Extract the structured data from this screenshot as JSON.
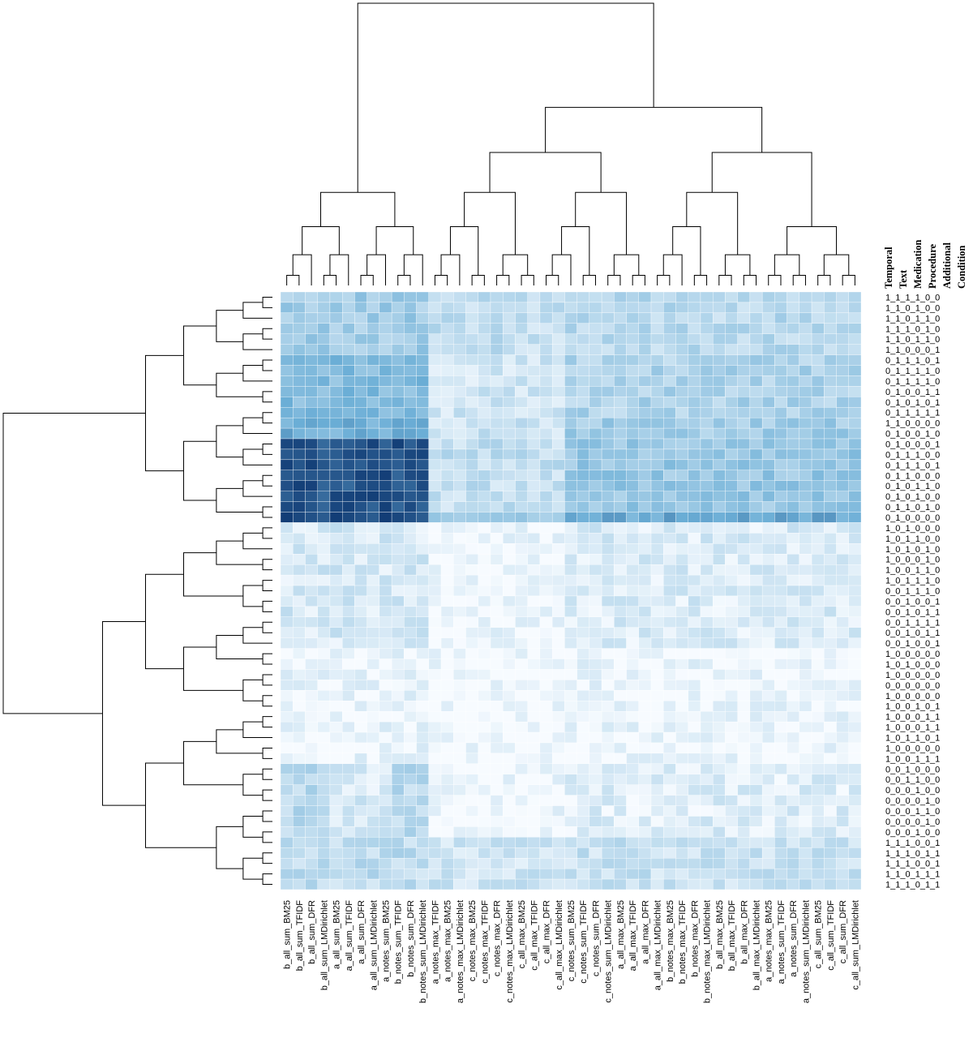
{
  "chart_data": {
    "type": "heatmap",
    "title": "",
    "xlabel": "",
    "ylabel": "",
    "color_scale": {
      "min_color": "#f7fbff",
      "max_color": "#08306b",
      "range": [
        0,
        1
      ]
    },
    "row_header": [
      "Temporal",
      "Text",
      "Medication",
      "Procedure",
      "Additional",
      "Condition"
    ],
    "columns": [
      "b_all_sum_BM25",
      "b_all_sum_TFIDF",
      "b_all_sum_DFR",
      "b_all_sum_LMDirichlet",
      "a_all_sum_BM25",
      "a_all_sum_TFIDF",
      "a_all_sum_DFR",
      "a_all_sum_LMDirichlet",
      "a_notes_sum_BM25",
      "b_notes_sum_TFIDF",
      "b_notes_sum_DFR",
      "b_notes_sum_LMDirichlet",
      "a_notes_max_TFIDF",
      "a_notes_max_BM25",
      "a_notes_max_LMDirichlet",
      "c_notes_max_BM25",
      "c_notes_max_TFIDF",
      "c_notes_max_DFR",
      "c_notes_max_LMDirichlet",
      "c_all_max_BM25",
      "c_all_max_TFIDF",
      "c_all_max_DFR",
      "c_all_max_LMDirichlet",
      "c_notes_sum_BM25",
      "c_notes_sum_TFIDF",
      "c_notes_sum_DFR",
      "c_notes_sum_LMDirichlet",
      "a_all_max_BM25",
      "a_all_max_TFIDF",
      "a_all_max_DFR",
      "a_all_max_LMDirichlet",
      "b_notes_max_BM25",
      "b_notes_max_TFIDF",
      "b_notes_max_DFR",
      "b_notes_max_LMDirichlet",
      "b_all_max_BM25",
      "b_all_max_TFIDF",
      "b_all_max_DFR",
      "b_all_max_LMDirichlet",
      "a_notes_max_BM25",
      "a_notes_sum_TFIDF",
      "a_notes_sum_DFR",
      "a_notes_sum_LMDirichlet",
      "c_all_sum_BM25",
      "c_all_sum_TFIDF",
      "c_all_sum_DFR",
      "c_all_sum_LMDirichlet"
    ],
    "rows": [
      "1_1_1_1_0_0",
      "1_1_0_1_0_0",
      "1_1_0_1_1_0",
      "1_1_1_0_1_0",
      "1_1_0_1_1_0",
      "1_1_0_0_0_1",
      "0_1_1_1_0_1",
      "0_1_1_1_1_0",
      "0_1_1_1_1_0",
      "0_1_0_0_1_1",
      "0_1_0_1_0_1",
      "0_1_1_1_1_1",
      "1_1_0_0_0_0",
      "0_1_0_0_1_0",
      "0_1_0_0_0_1",
      "0_1_1_1_0_0",
      "0_1_1_1_0_1",
      "0_1_1_0_0_0",
      "0_1_0_1_1_0",
      "0_1_0_1_0_0",
      "0_1_1_0_1_0",
      "0_1_0_0_0_0",
      "1_0_1_0_0_0",
      "1_0_1_1_0_0",
      "1_0_1_0_1_0",
      "1_0_0_0_1_0",
      "1_0_0_1_1_0",
      "1_0_1_1_1_0",
      "0_0_1_1_1_0",
      "0_0_1_0_0_1",
      "0_0_1_0_1_1",
      "0_0_1_1_1_1",
      "0_0_1_0_1_1",
      "0_0_1_0_0_1",
      "1_0_0_0_0_0",
      "1_0_1_0_0_0",
      "1_0_0_0_0_0",
      "0_0_0_0_0_0",
      "1_0_0_0_0_0",
      "1_0_0_1_0_1",
      "1_0_0_0_1_1",
      "1_0_0_0_1_1",
      "1_0_1_1_0_1",
      "1_0_0_0_0_0",
      "1_0_0_1_1_1",
      "0_0_1_0_0_0",
      "0_0_1_1_0_0",
      "0_0_0_1_0_0",
      "0_0_0_0_1_0",
      "0_0_0_1_1_0",
      "0_0_0_0_1_0",
      "0_0_0_1_0_0",
      "1_1_1_0_0_1",
      "1_1_1_0_1_1",
      "1_1_1_0_0_1",
      "1_1_0_1_1_1",
      "1_1_1_0_1_1"
    ]
  }
}
